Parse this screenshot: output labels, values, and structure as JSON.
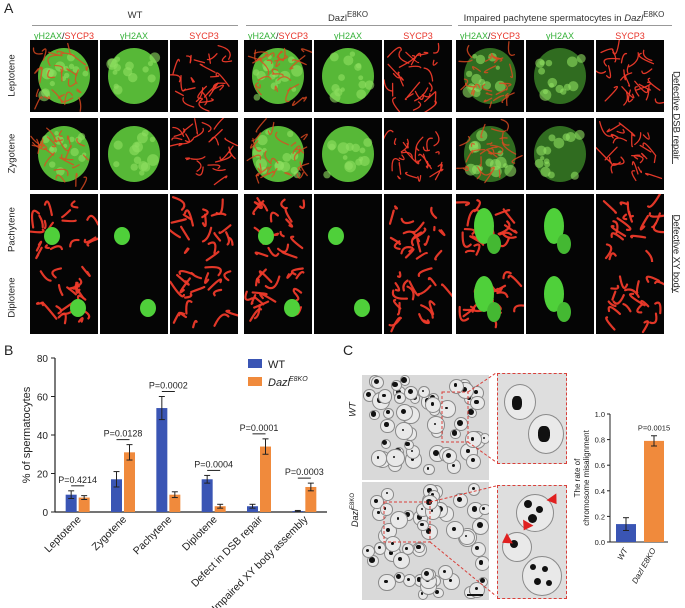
{
  "panels": {
    "a": "A",
    "b": "B",
    "c": "C"
  },
  "panel_a": {
    "groups": [
      {
        "title_html": "WT",
        "cols": [
          {
            "label": [
              "γH2AX",
              "/",
              "SYCP3"
            ],
            "type": "merge"
          },
          {
            "label": [
              "γH2AX"
            ],
            "type": "g"
          },
          {
            "label": [
              "SYCP3"
            ],
            "type": "r"
          }
        ]
      },
      {
        "title_html": "Dazl<sup>E8KO</sup>",
        "cols": [
          {
            "label": [
              "γH2AX",
              "/",
              "SYCP3"
            ],
            "type": "merge"
          },
          {
            "label": [
              "γH2AX"
            ],
            "type": "g"
          },
          {
            "label": [
              "SYCP3"
            ],
            "type": "r"
          }
        ]
      },
      {
        "title_html": "Impaired pachytene spermatocytes in <i>Dazl</i><sup>E8KO</sup>",
        "cols": [
          {
            "label": [
              "γH2AX",
              "/",
              "SYCP3"
            ],
            "type": "merge"
          },
          {
            "label": [
              "γH2AX"
            ],
            "type": "g"
          },
          {
            "label": [
              "SYCP3"
            ],
            "type": "r"
          }
        ]
      }
    ],
    "rows": [
      "Leptotene",
      "Zygotene",
      "Pachytene",
      "Diplotene"
    ],
    "side_labels": [
      "Defective DSB repair",
      "Defective XY body"
    ]
  },
  "chart_data": [
    {
      "type": "bar",
      "ylabel": "% of spermatocytes",
      "ylim": [
        0,
        80
      ],
      "yticks": [
        0,
        20,
        40,
        60,
        80
      ],
      "categories": [
        "Leptotene",
        "Zygotene",
        "Pachytene",
        "Diplotene",
        "Defect in DSB repair",
        "Impaired XY body assembly"
      ],
      "series": [
        {
          "name": "WT",
          "color": "#3a55b4",
          "values": [
            9,
            17,
            54,
            17,
            3,
            0.5
          ],
          "errors": [
            2,
            4,
            6,
            2,
            1,
            0.3
          ]
        },
        {
          "name": "Dazl E8KO",
          "color": "#f08a3c",
          "values": [
            7.5,
            31,
            9,
            3,
            34,
            13
          ],
          "errors": [
            1,
            4,
            1.5,
            1,
            4,
            2
          ]
        }
      ],
      "pvalues": [
        "P=0.4214",
        "P=0.0128",
        "P=0.0002",
        "P=0.0004",
        "P=0.0001",
        "P=0.0003"
      ],
      "legend": [
        {
          "name": "WT",
          "sup": ""
        },
        {
          "name": "Dazl",
          "sup": "E8KO"
        }
      ],
      "legend_position": "top-right"
    },
    {
      "type": "bar",
      "ylabel": "The rate of chromosome misalignment",
      "ylim": [
        0,
        1.0
      ],
      "yticks": [
        "0.0",
        "0.2",
        "0.4",
        "0.6",
        "0.8",
        "1.0"
      ],
      "categories": [
        "WT",
        "Dazl E8KO"
      ],
      "values": [
        0.14,
        0.79
      ],
      "errors": [
        0.05,
        0.04
      ],
      "colors": [
        "#3a55b4",
        "#f08a3c"
      ],
      "pvalue": "P=0.0015"
    }
  ],
  "panel_c_images": {
    "row_labels": [
      "WT",
      "Dazl E8KO"
    ]
  }
}
